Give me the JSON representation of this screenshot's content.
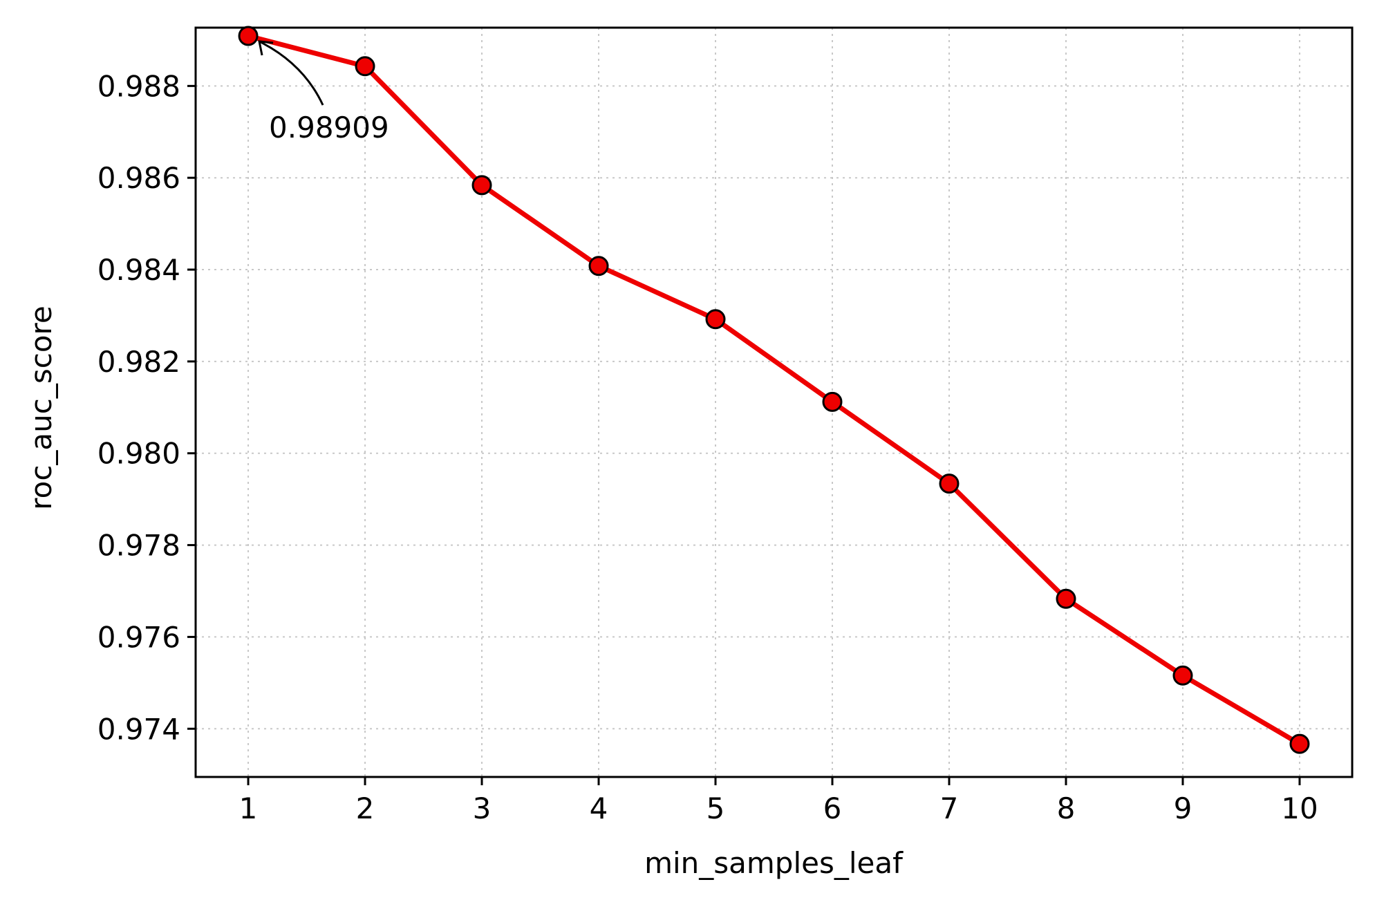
{
  "chart_data": {
    "type": "line",
    "xlabel": "min_samples_leaf",
    "ylabel": "roc_auc_score",
    "x": [
      1,
      2,
      3,
      4,
      5,
      6,
      7,
      8,
      9,
      10
    ],
    "x_ticks": [
      "1",
      "2",
      "3",
      "4",
      "5",
      "6",
      "7",
      "8",
      "9",
      "10"
    ],
    "xlim": [
      0.55,
      10.45
    ],
    "ylim": [
      0.97295,
      0.98927
    ],
    "y_ticks": [
      "0.974",
      "0.976",
      "0.978",
      "0.980",
      "0.982",
      "0.984",
      "0.986",
      "0.988"
    ],
    "grid": true,
    "series": [
      {
        "values": [
          0.98909,
          0.98843,
          0.98584,
          0.98408,
          0.98292,
          0.98112,
          0.97934,
          0.97683,
          0.97516,
          0.97367
        ],
        "color": "#ee0000",
        "marker_color": "#ee0000",
        "marker_edge": "#000000"
      }
    ],
    "annotation": {
      "text": "0.98909",
      "x": 1,
      "y": 0.98909
    }
  }
}
